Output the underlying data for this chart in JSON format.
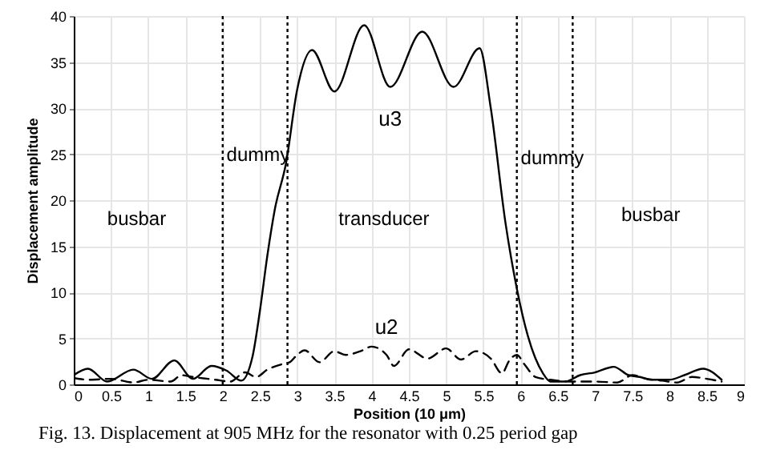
{
  "chart_data": {
    "type": "line",
    "xlabel": "Position (10 μm)",
    "ylabel": "Displacement amplitude",
    "xlim": [
      0,
      9
    ],
    "xticks": [
      0,
      0.5,
      1,
      1.5,
      2,
      2.5,
      3,
      3.5,
      4,
      4.5,
      5,
      5.5,
      6,
      6.5,
      7,
      7.5,
      8,
      8.5,
      9
    ],
    "ylim": [
      0,
      40
    ],
    "yticks": [
      0,
      5,
      10,
      15,
      20,
      25,
      30,
      35,
      40
    ],
    "grid": true,
    "marker": "none",
    "series": [
      {
        "name": "u3",
        "color": "#000000",
        "line_style": "solid",
        "x": [
          0,
          0.19,
          0.45,
          0.8,
          1.05,
          1.35,
          1.6,
          1.85,
          2.05,
          2.25,
          2.4,
          2.5,
          2.6,
          2.7,
          2.85,
          3.0,
          3.2,
          3.5,
          3.9,
          4.25,
          4.68,
          5.1,
          5.45,
          5.6,
          5.8,
          5.95,
          6.1,
          6.3,
          6.4,
          6.6,
          6.8,
          7.0,
          7.25,
          7.45,
          7.6,
          7.75,
          8.0,
          8.2,
          8.45,
          8.7
        ],
        "values": [
          1,
          1.7,
          0.3,
          1.6,
          0.6,
          2.6,
          0.6,
          2,
          1.5,
          0.4,
          3,
          8,
          14,
          19,
          24,
          32,
          36.3,
          31.8,
          39,
          32.3,
          38.3,
          32.3,
          36.5,
          30,
          17.4,
          10.4,
          5.2,
          1.2,
          0.3,
          0.3,
          1,
          1.3,
          1.9,
          1,
          0.8,
          0.5,
          0.5,
          1,
          1.7,
          0.5
        ]
      },
      {
        "name": "u2",
        "color": "#000000",
        "line_style": "dashed",
        "x": [
          0,
          0.2,
          0.5,
          0.8,
          1.0,
          1.3,
          1.45,
          1.6,
          1.9,
          2.1,
          2.3,
          2.45,
          2.6,
          2.8,
          2.9,
          3.0,
          3.1,
          3.3,
          3.5,
          3.65,
          3.85,
          4.0,
          4.2,
          4.3,
          4.5,
          4.75,
          5.0,
          5.2,
          5.4,
          5.6,
          5.75,
          5.85,
          5.95,
          6.05,
          6.2,
          6.4,
          6.7,
          7.0,
          7.3,
          7.5,
          7.7,
          7.9,
          8.1,
          8.3,
          8.5,
          8.7
        ],
        "values": [
          0.7,
          0.5,
          0.6,
          0.2,
          0.5,
          0.3,
          1,
          0.8,
          0.5,
          0.3,
          1.3,
          0.8,
          1.6,
          2.2,
          2.4,
          3.2,
          3.7,
          2.4,
          3.6,
          3.2,
          3.6,
          4.1,
          3.2,
          2,
          3.8,
          2.8,
          3.9,
          2.7,
          3.6,
          2.8,
          1.2,
          2.6,
          3.2,
          2.2,
          0.8,
          0.5,
          0.3,
          0.3,
          0.2,
          1,
          0.6,
          0.4,
          0.2,
          0.8,
          0.6,
          0.3
        ]
      }
    ],
    "ref_lines": [
      {
        "axis": "x",
        "value": 2,
        "line_style": "dotted",
        "color": "#000000"
      },
      {
        "axis": "x",
        "value": 2.87,
        "line_style": "dotted",
        "color": "#000000"
      },
      {
        "axis": "x",
        "value": 5.95,
        "line_style": "dotted",
        "color": "#000000"
      },
      {
        "axis": "x",
        "value": 6.7,
        "line_style": "dotted",
        "color": "#000000"
      }
    ],
    "annotations": [
      "busbar",
      "dummy",
      "transducer",
      "dummy",
      "busbar",
      "Fig. 13. Displacement at 905 MHz for the resonator with 0.25 period gap"
    ]
  }
}
